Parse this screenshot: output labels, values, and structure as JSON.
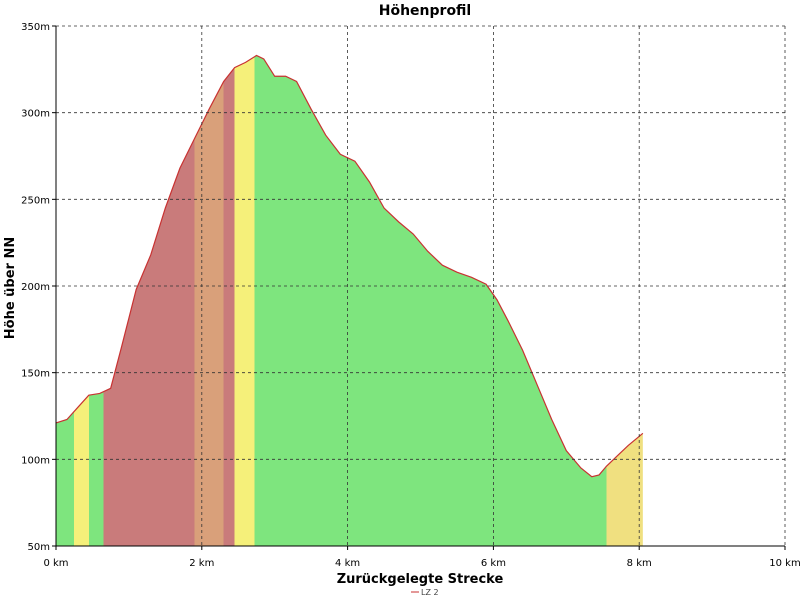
{
  "chart_data": {
    "type": "area",
    "title": "Höhenprofil",
    "xlabel": "Zurückgelegte Strecke",
    "ylabel": "Höhe über NN",
    "xlim": [
      0,
      10
    ],
    "ylim": [
      50,
      350
    ],
    "x_ticks": [
      0,
      2,
      4,
      6,
      8,
      10
    ],
    "x_tick_labels": [
      "0 km",
      "2 km",
      "4 km",
      "6 km",
      "8 km",
      "10 km"
    ],
    "y_ticks": [
      50,
      100,
      150,
      200,
      250,
      300,
      350
    ],
    "y_tick_labels": [
      "50m",
      "100m",
      "150m",
      "200m",
      "250m",
      "300m",
      "350m"
    ],
    "grid": true,
    "legend": {
      "placement": "bottom-center",
      "entries": [
        "LZ 2"
      ]
    },
    "series": [
      {
        "name": "LZ 2",
        "line_color": "#c83232",
        "x": [
          0,
          0.15,
          0.3,
          0.45,
          0.6,
          0.75,
          0.9,
          1.1,
          1.3,
          1.5,
          1.7,
          1.9,
          2.1,
          2.3,
          2.45,
          2.6,
          2.75,
          2.85,
          3.0,
          3.15,
          3.3,
          3.5,
          3.7,
          3.9,
          4.1,
          4.3,
          4.5,
          4.7,
          4.9,
          5.1,
          5.3,
          5.5,
          5.7,
          5.9,
          6.05,
          6.2,
          6.4,
          6.6,
          6.8,
          7.0,
          7.2,
          7.35,
          7.45,
          7.55,
          7.7,
          7.85,
          8.05
        ],
        "y": [
          121,
          123,
          130,
          137,
          138,
          141,
          165,
          198,
          218,
          245,
          268,
          285,
          302,
          318,
          326,
          329,
          333,
          331,
          321,
          321,
          318,
          302,
          287,
          276,
          272,
          260,
          245,
          237,
          230,
          220,
          212,
          208,
          205,
          201,
          192,
          180,
          163,
          143,
          123,
          105,
          95,
          90,
          91,
          96,
          102,
          108,
          115
        ]
      }
    ],
    "gradient_segments": [
      {
        "from": 0,
        "to": 0.25,
        "color": "#7ee57e"
      },
      {
        "from": 0.25,
        "to": 0.45,
        "color": "#f5f07a"
      },
      {
        "from": 0.45,
        "to": 0.65,
        "color": "#7ee57e"
      },
      {
        "from": 0.65,
        "to": 1.9,
        "color": "#c97b7b"
      },
      {
        "from": 1.9,
        "to": 2.3,
        "color": "#d9a07a"
      },
      {
        "from": 2.3,
        "to": 2.45,
        "color": "#c97b7b"
      },
      {
        "from": 2.45,
        "to": 2.72,
        "color": "#f5f07a"
      },
      {
        "from": 2.72,
        "to": 7.55,
        "color": "#7ee57e"
      },
      {
        "from": 7.55,
        "to": 8.05,
        "color": "#f0e080"
      }
    ]
  }
}
